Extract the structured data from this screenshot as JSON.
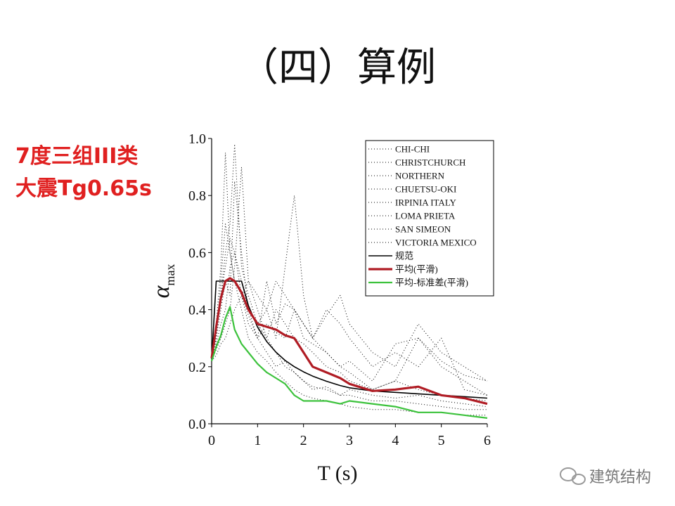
{
  "title": "（四）算例",
  "note_lines": [
    "7度三组III类",
    "大震Tg0.65s"
  ],
  "watermark": "建筑结构",
  "chart_data": {
    "type": "line",
    "x_label": "T (s)",
    "y_label": "α",
    "y_label_sub": "max",
    "x": [
      0,
      0.1,
      0.2,
      0.3,
      0.4,
      0.5,
      0.65,
      0.8,
      1.0,
      1.2,
      1.4,
      1.6,
      1.8,
      2.0,
      2.2,
      2.5,
      2.8,
      3.0,
      3.5,
      4.0,
      4.5,
      5.0,
      5.5,
      6.0
    ],
    "xlim": [
      0,
      6
    ],
    "xticks": [
      0,
      1,
      2,
      3,
      4,
      5,
      6
    ],
    "ylim": [
      0,
      1
    ],
    "yticks": [
      {
        "value": 0,
        "label": "0.0"
      },
      0.2,
      0.4,
      0.6,
      0.8,
      {
        "value": 1,
        "label": "1.0"
      }
    ],
    "legend": "upper right",
    "series": [
      {
        "name": "CHI-CHI",
        "color": "#000000",
        "style": "dotted",
        "values": [
          0.22,
          0.3,
          0.45,
          0.6,
          0.7,
          0.98,
          0.55,
          0.45,
          0.35,
          0.4,
          0.3,
          0.55,
          0.8,
          0.45,
          0.3,
          0.25,
          0.2,
          0.22,
          0.15,
          0.28,
          0.3,
          0.22,
          0.17,
          0.15
        ]
      },
      {
        "name": "CHRISTCHURCH",
        "color": "#000000",
        "style": "dotted",
        "values": [
          0.22,
          0.35,
          0.55,
          0.95,
          0.6,
          0.5,
          0.45,
          0.35,
          0.3,
          0.5,
          0.35,
          0.42,
          0.4,
          0.35,
          0.3,
          0.38,
          0.45,
          0.35,
          0.25,
          0.2,
          0.35,
          0.25,
          0.2,
          0.15
        ]
      },
      {
        "name": "NORTHERN",
        "color": "#000000",
        "style": "dotted",
        "values": [
          0.22,
          0.3,
          0.4,
          0.5,
          0.45,
          0.85,
          0.6,
          0.4,
          0.3,
          0.25,
          0.2,
          0.22,
          0.18,
          0.15,
          0.12,
          0.13,
          0.1,
          0.12,
          0.1,
          0.09,
          0.1,
          0.08,
          0.07,
          0.06
        ]
      },
      {
        "name": "CHUETSU-OKI",
        "color": "#000000",
        "style": "dotted",
        "values": [
          0.22,
          0.28,
          0.35,
          0.4,
          0.55,
          0.6,
          0.45,
          0.38,
          0.3,
          0.35,
          0.32,
          0.3,
          0.4,
          0.3,
          0.28,
          0.25,
          0.2,
          0.18,
          0.12,
          0.15,
          0.12,
          0.1,
          0.09,
          0.08
        ]
      },
      {
        "name": "IRPINIA ITALY",
        "color": "#000000",
        "style": "dotted",
        "values": [
          0.22,
          0.3,
          0.5,
          0.7,
          0.6,
          0.5,
          0.4,
          0.3,
          0.25,
          0.22,
          0.18,
          0.15,
          0.12,
          0.1,
          0.09,
          0.08,
          0.07,
          0.06,
          0.05,
          0.05,
          0.04,
          0.04,
          0.03,
          0.03
        ]
      },
      {
        "name": "LOMA PRIETA",
        "color": "#000000",
        "style": "dotted",
        "values": [
          0.22,
          0.32,
          0.45,
          0.55,
          0.65,
          0.6,
          0.5,
          0.4,
          0.35,
          0.3,
          0.4,
          0.35,
          0.3,
          0.28,
          0.25,
          0.2,
          0.18,
          0.15,
          0.12,
          0.15,
          0.3,
          0.2,
          0.15,
          0.1
        ]
      },
      {
        "name": "SAN SIMEON",
        "color": "#000000",
        "style": "dotted",
        "values": [
          0.22,
          0.26,
          0.3,
          0.35,
          0.4,
          0.55,
          0.9,
          0.5,
          0.4,
          0.3,
          0.25,
          0.2,
          0.18,
          0.15,
          0.13,
          0.12,
          0.1,
          0.1,
          0.08,
          0.08,
          0.07,
          0.06,
          0.05,
          0.05
        ]
      },
      {
        "name": "VICTORIA MEXICO",
        "color": "#000000",
        "style": "dotted",
        "values": [
          0.22,
          0.24,
          0.28,
          0.3,
          0.35,
          0.4,
          0.45,
          0.5,
          0.45,
          0.4,
          0.5,
          0.45,
          0.4,
          0.35,
          0.3,
          0.4,
          0.35,
          0.3,
          0.2,
          0.25,
          0.2,
          0.3,
          0.12,
          0.1
        ]
      },
      {
        "name": "规范",
        "color": "#000000",
        "style": "solid",
        "values": [
          0.225,
          0.5,
          0.5,
          0.5,
          0.5,
          0.5,
          0.5,
          0.414,
          0.339,
          0.288,
          0.251,
          0.222,
          0.2,
          0.182,
          0.167,
          0.149,
          0.134,
          0.126,
          0.115,
          0.11,
          0.105,
          0.1,
          0.095,
          0.09
        ]
      },
      {
        "name": "平均(平滑)",
        "color": "#b01c24",
        "style": "thick",
        "values": [
          0.23,
          0.34,
          0.44,
          0.5,
          0.51,
          0.5,
          0.46,
          0.4,
          0.35,
          0.34,
          0.33,
          0.31,
          0.3,
          0.25,
          0.2,
          0.18,
          0.16,
          0.14,
          0.115,
          0.12,
          0.13,
          0.1,
          0.09,
          0.07
        ]
      },
      {
        "name": "平均-标准差(平滑)",
        "color": "#3cc23c",
        "style": "medium",
        "values": [
          0.22,
          0.27,
          0.31,
          0.37,
          0.41,
          0.33,
          0.28,
          0.25,
          0.21,
          0.18,
          0.16,
          0.14,
          0.1,
          0.08,
          0.08,
          0.08,
          0.07,
          0.08,
          0.07,
          0.06,
          0.04,
          0.04,
          0.03,
          0.02
        ]
      }
    ]
  }
}
